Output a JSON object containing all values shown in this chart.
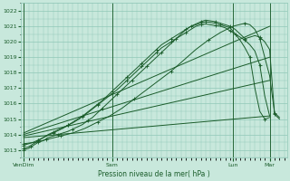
{
  "xlabel": "Pression niveau de la mer( hPa )",
  "bg_color": "#c8e8dc",
  "grid_color": "#90c8b8",
  "line_color": "#1a5c2a",
  "ylim": [
    1012.5,
    1022.5
  ],
  "yticks": [
    1013,
    1014,
    1015,
    1016,
    1017,
    1018,
    1019,
    1020,
    1021,
    1022
  ],
  "xtick_labels": [
    "VenDim",
    "Sam",
    "Lun",
    "Mar"
  ],
  "xtick_positions": [
    0,
    36,
    85,
    100
  ],
  "xlim": [
    -1,
    107
  ],
  "series": [
    {
      "x": [
        0,
        1,
        2,
        3,
        4,
        5,
        6,
        7,
        8,
        9,
        10,
        12,
        14,
        16,
        18,
        20,
        22,
        24,
        26,
        28,
        30,
        32,
        34,
        36,
        38,
        40,
        42,
        44,
        46,
        48,
        50,
        52,
        54,
        56,
        58,
        60,
        62,
        64,
        66,
        68,
        70,
        72,
        74,
        76,
        78,
        80,
        82,
        84,
        86,
        88,
        90,
        92,
        94,
        96,
        98,
        100
      ],
      "y": [
        1013.0,
        1013.05,
        1013.1,
        1013.2,
        1013.3,
        1013.4,
        1013.5,
        1013.55,
        1013.6,
        1013.7,
        1013.8,
        1013.9,
        1014.0,
        1014.1,
        1014.2,
        1014.35,
        1014.5,
        1014.65,
        1014.9,
        1015.1,
        1015.4,
        1015.7,
        1016.0,
        1016.3,
        1016.6,
        1016.9,
        1017.2,
        1017.5,
        1017.8,
        1018.1,
        1018.4,
        1018.7,
        1019.0,
        1019.3,
        1019.6,
        1019.9,
        1020.2,
        1020.5,
        1020.8,
        1021.0,
        1021.1,
        1021.2,
        1021.3,
        1021.25,
        1021.2,
        1021.1,
        1021.0,
        1020.9,
        1020.5,
        1020.1,
        1019.6,
        1019.0,
        1017.0,
        1015.5,
        1015.0,
        1015.1
      ],
      "style": "marker_line",
      "lw": 0.7,
      "marker": "+"
    },
    {
      "x": [
        0,
        2,
        4,
        6,
        8,
        10,
        12,
        14,
        16,
        18,
        20,
        22,
        24,
        26,
        28,
        30,
        32,
        34,
        36,
        38,
        40,
        42,
        44,
        46,
        48,
        50,
        52,
        54,
        56,
        58,
        60,
        62,
        64,
        66,
        68,
        70,
        72,
        74,
        76,
        78,
        80,
        82,
        84,
        86,
        88,
        90,
        92,
        94,
        96,
        98,
        100
      ],
      "y": [
        1013.1,
        1013.2,
        1013.4,
        1013.6,
        1013.8,
        1014.0,
        1014.15,
        1014.3,
        1014.45,
        1014.6,
        1014.75,
        1014.95,
        1015.15,
        1015.4,
        1015.65,
        1015.9,
        1016.15,
        1016.4,
        1016.65,
        1016.9,
        1017.2,
        1017.5,
        1017.8,
        1018.1,
        1018.4,
        1018.7,
        1019.0,
        1019.3,
        1019.6,
        1019.8,
        1020.0,
        1020.2,
        1020.4,
        1020.6,
        1020.8,
        1021.0,
        1021.1,
        1021.15,
        1021.1,
        1021.05,
        1021.0,
        1020.9,
        1020.7,
        1020.5,
        1020.3,
        1020.1,
        1019.8,
        1019.4,
        1018.5,
        1016.5,
        1015.2
      ],
      "style": "marker_line",
      "lw": 0.7,
      "marker": "+"
    },
    {
      "x": [
        0,
        2,
        4,
        6,
        8,
        10,
        12,
        14,
        16,
        18,
        20,
        22,
        24,
        26,
        28,
        30,
        32,
        34,
        36,
        38,
        40,
        42,
        44,
        46,
        48,
        50,
        52,
        54,
        56,
        58,
        60,
        62,
        64,
        66,
        68,
        70,
        72,
        74,
        76,
        78,
        80,
        82,
        84,
        86,
        88,
        90,
        92,
        94,
        96,
        98,
        100,
        102,
        104
      ],
      "y": [
        1013.3,
        1013.4,
        1013.5,
        1013.65,
        1013.8,
        1013.95,
        1014.1,
        1014.25,
        1014.4,
        1014.6,
        1014.8,
        1015.0,
        1015.2,
        1015.45,
        1015.7,
        1015.95,
        1016.2,
        1016.5,
        1016.8,
        1017.1,
        1017.4,
        1017.7,
        1018.0,
        1018.3,
        1018.6,
        1018.9,
        1019.2,
        1019.5,
        1019.8,
        1020.0,
        1020.2,
        1020.4,
        1020.6,
        1020.8,
        1021.0,
        1021.15,
        1021.3,
        1021.4,
        1021.35,
        1021.3,
        1021.2,
        1021.1,
        1021.0,
        1020.8,
        1020.5,
        1020.2,
        1020.3,
        1020.4,
        1020.3,
        1020.0,
        1019.5,
        1015.3,
        1015.0
      ],
      "style": "marker_line",
      "lw": 0.7,
      "marker": "+"
    },
    {
      "x": [
        0,
        100
      ],
      "y": [
        1013.8,
        1015.2
      ],
      "style": "plain_line",
      "lw": 0.7
    },
    {
      "x": [
        0,
        100
      ],
      "y": [
        1013.9,
        1017.5
      ],
      "style": "plain_line",
      "lw": 0.7
    },
    {
      "x": [
        0,
        100
      ],
      "y": [
        1014.0,
        1019.0
      ],
      "style": "plain_line",
      "lw": 0.7
    },
    {
      "x": [
        0,
        100
      ],
      "y": [
        1014.1,
        1021.0
      ],
      "style": "plain_line",
      "lw": 0.7
    },
    {
      "x": [
        0,
        5,
        10,
        15,
        20,
        25,
        30,
        35,
        40,
        45,
        50,
        55,
        60,
        65,
        70,
        75,
        80,
        85,
        90,
        92,
        94,
        96,
        98,
        100,
        102,
        104
      ],
      "y": [
        1013.4,
        1013.5,
        1013.7,
        1013.9,
        1014.1,
        1014.4,
        1014.8,
        1015.2,
        1015.7,
        1016.3,
        1016.9,
        1017.5,
        1018.1,
        1018.8,
        1019.5,
        1020.1,
        1020.6,
        1021.0,
        1021.2,
        1021.1,
        1020.8,
        1020.2,
        1019.0,
        1017.8,
        1015.4,
        1015.1
      ],
      "style": "marker_line",
      "lw": 0.7,
      "marker": "+"
    }
  ]
}
